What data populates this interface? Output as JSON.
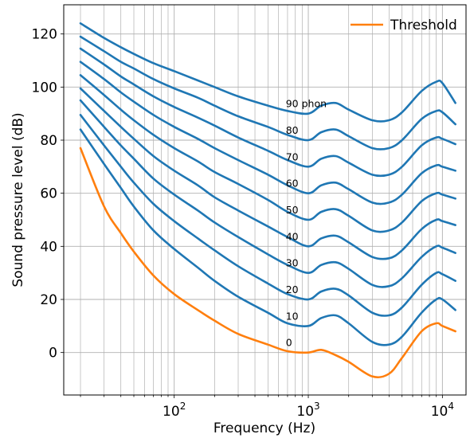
{
  "chart_data": {
    "type": "line",
    "xlabel": "Frequency (Hz)",
    "ylabel": "Sound pressure level (dB)",
    "xscale": "log",
    "xlim": [
      15,
      15000
    ],
    "ylim": [
      -16,
      131
    ],
    "grid": "on (major and minor)",
    "legend": "top-right",
    "x_ticks": [
      {
        "value": 100,
        "base": "10",
        "exp": "2"
      },
      {
        "value": 1000,
        "base": "10",
        "exp": "3"
      },
      {
        "value": 10000,
        "base": "10",
        "exp": "4"
      }
    ],
    "y_ticks": [
      0,
      20,
      40,
      60,
      80,
      100,
      120
    ],
    "colors": {
      "phon": "#1f77b4",
      "threshold": "#ff7f0e"
    },
    "series": [
      {
        "name": "Threshold",
        "kind": "threshold",
        "label": "0",
        "x": [
          20,
          30,
          40,
          50,
          70,
          100,
          150,
          200,
          300,
          500,
          700,
          1000,
          1250,
          1600,
          2000,
          3000,
          4000,
          5000,
          7000,
          9000,
          10000,
          12500
        ],
        "y": [
          77,
          55,
          45,
          38,
          29,
          22,
          16,
          12,
          7,
          3,
          0.5,
          0,
          1,
          -1,
          -3.5,
          -9,
          -8,
          -2,
          8,
          11,
          10,
          8
        ]
      },
      {
        "kind": "phon",
        "label": "10",
        "x": [
          20,
          30,
          40,
          50,
          70,
          100,
          150,
          200,
          300,
          500,
          700,
          1000,
          1250,
          1600,
          2000,
          3000,
          4000,
          5000,
          7000,
          9000,
          10000,
          12500
        ],
        "y": [
          84,
          71,
          62,
          55,
          46,
          39,
          32,
          27,
          21,
          15,
          11,
          10,
          13,
          14,
          11,
          4,
          3,
          6,
          15,
          20,
          20,
          16
        ]
      },
      {
        "kind": "phon",
        "label": "20",
        "x": [
          20,
          30,
          40,
          50,
          70,
          100,
          150,
          200,
          300,
          500,
          700,
          1000,
          1250,
          1600,
          2000,
          3000,
          4000,
          5000,
          7000,
          9000,
          10000,
          12500
        ],
        "y": [
          89.5,
          78,
          70,
          64,
          56,
          49.5,
          43,
          38.5,
          32.5,
          26,
          22,
          20,
          23,
          24,
          21.5,
          15,
          14,
          17,
          25.5,
          30,
          29.5,
          27
        ]
      },
      {
        "kind": "phon",
        "label": "30",
        "x": [
          20,
          30,
          40,
          50,
          70,
          100,
          150,
          200,
          300,
          500,
          700,
          1000,
          1250,
          1600,
          2000,
          3000,
          4000,
          5000,
          7000,
          9000,
          10000,
          12500
        ],
        "y": [
          95,
          85,
          78,
          73,
          65.5,
          59.5,
          53.5,
          49,
          43.5,
          37,
          33,
          30,
          33,
          34,
          31.5,
          25.5,
          25,
          28,
          36,
          40,
          39.5,
          37.5
        ]
      },
      {
        "kind": "phon",
        "label": "40",
        "x": [
          20,
          30,
          40,
          50,
          70,
          100,
          150,
          200,
          300,
          500,
          700,
          1000,
          1250,
          1600,
          2000,
          3000,
          4000,
          5000,
          7000,
          9000,
          10000,
          12500
        ],
        "y": [
          99.5,
          91,
          85,
          80.5,
          74,
          68.5,
          63,
          58.5,
          53.5,
          47.5,
          43.5,
          40,
          43,
          44,
          41.5,
          36,
          35.5,
          38.5,
          46.5,
          50,
          49.5,
          48
        ]
      },
      {
        "kind": "phon",
        "label": "50",
        "x": [
          20,
          30,
          40,
          50,
          70,
          100,
          150,
          200,
          300,
          500,
          700,
          1000,
          1250,
          1600,
          2000,
          3000,
          4000,
          5000,
          7000,
          9000,
          10000,
          12500
        ],
        "y": [
          104.5,
          97,
          91.5,
          87.5,
          82,
          77,
          72,
          68,
          63.5,
          57.5,
          53,
          50,
          53,
          54,
          51.5,
          46,
          46,
          49,
          57,
          60,
          59.5,
          58
        ]
      },
      {
        "kind": "phon",
        "label": "60",
        "x": [
          20,
          30,
          40,
          50,
          70,
          100,
          150,
          200,
          300,
          500,
          700,
          1000,
          1250,
          1600,
          2000,
          3000,
          4000,
          5000,
          7000,
          9000,
          10000,
          12500
        ],
        "y": [
          109.5,
          103,
          98,
          94.5,
          89.5,
          85,
          80.5,
          77,
          72.5,
          67,
          63,
          60,
          63,
          64,
          61.5,
          56.5,
          56.5,
          59.5,
          67.5,
          70.5,
          70,
          68.5
        ]
      },
      {
        "kind": "phon",
        "label": "70",
        "x": [
          20,
          30,
          40,
          50,
          70,
          100,
          150,
          200,
          300,
          500,
          700,
          1000,
          1250,
          1600,
          2000,
          3000,
          4000,
          5000,
          7000,
          9000,
          10000,
          12500
        ],
        "y": [
          114.5,
          108.5,
          104,
          101,
          96.5,
          92.5,
          88.5,
          85.5,
          81,
          76,
          72.5,
          70,
          73,
          74,
          71.5,
          67,
          67,
          70,
          78,
          81,
          80.5,
          78.5
        ]
      },
      {
        "kind": "phon",
        "label": "80",
        "x": [
          20,
          30,
          40,
          50,
          70,
          100,
          150,
          200,
          300,
          500,
          700,
          1000,
          1250,
          1600,
          2000,
          3000,
          4000,
          5000,
          7000,
          9000,
          10000,
          12500
        ],
        "y": [
          119,
          113.5,
          109.5,
          107,
          103,
          99.5,
          96,
          93,
          89,
          85,
          82,
          80,
          83,
          84,
          81.5,
          77,
          77,
          80,
          88,
          91,
          90.5,
          86
        ]
      },
      {
        "kind": "phon",
        "label": "90 phon",
        "x": [
          20,
          30,
          40,
          50,
          70,
          100,
          150,
          200,
          300,
          500,
          700,
          1000,
          1250,
          1600,
          2000,
          3000,
          4000,
          5000,
          7000,
          9000,
          10000,
          12500
        ],
        "y": [
          124,
          118.5,
          115,
          112.5,
          109,
          106,
          102.5,
          100,
          96.5,
          93,
          91,
          90,
          93,
          94,
          91.5,
          87.5,
          87.5,
          90.5,
          98.5,
          102,
          101.5,
          94
        ]
      }
    ]
  }
}
